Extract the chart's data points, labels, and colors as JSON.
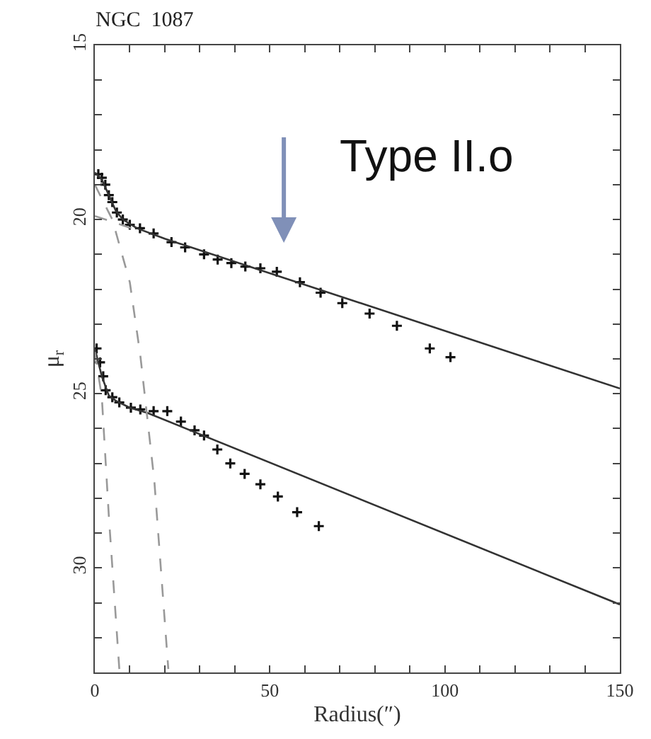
{
  "chart_data": {
    "type": "scatter",
    "title": "NGC  1087",
    "xlabel": "Radius(″)",
    "ylabel": "μ$_{r}$",
    "xlim": [
      0,
      150
    ],
    "ylim": [
      33,
      15
    ],
    "xticks": [
      0,
      {
        "value": 10,
        "label": null
      },
      {
        "value": 20,
        "label": null
      },
      {
        "value": 30,
        "label": null
      },
      {
        "value": 40,
        "label": null
      },
      50,
      {
        "value": 60,
        "label": null
      },
      {
        "value": 70,
        "label": null
      },
      {
        "value": 80,
        "label": null
      },
      {
        "value": 90,
        "label": null
      },
      100,
      {
        "value": 110,
        "label": null
      },
      {
        "value": 120,
        "label": null
      },
      {
        "value": 130,
        "label": null
      },
      {
        "value": 140,
        "label": null
      },
      150
    ],
    "yticks": [
      15,
      {
        "value": 16,
        "label": null
      },
      {
        "value": 17,
        "label": null
      },
      {
        "value": 18,
        "label": null
      },
      {
        "value": 19,
        "label": null
      },
      20,
      {
        "value": 21,
        "label": null
      },
      {
        "value": 22,
        "label": null
      },
      {
        "value": 23,
        "label": null
      },
      {
        "value": 24,
        "label": null
      },
      25,
      {
        "value": 26,
        "label": null
      },
      {
        "value": 27,
        "label": null
      },
      {
        "value": 28,
        "label": null
      },
      {
        "value": 29,
        "label": null
      },
      30,
      {
        "value": 31,
        "label": null
      },
      {
        "value": 32,
        "label": null
      },
      {
        "value": 33,
        "label": null
      }
    ],
    "annotations": [
      "Type II.o"
    ],
    "series": [
      {
        "marker": "cross",
        "color": "#111111",
        "x": [
          1,
          2,
          3,
          4,
          5,
          6.3,
          8,
          10,
          12.9,
          16.8,
          21.9,
          25.8,
          31.2,
          35.1,
          39,
          43,
          47.3,
          52,
          58.6,
          64.5,
          70.7,
          78.5,
          86.3,
          95.7,
          101.6
        ],
        "values": [
          18.7,
          18.8,
          19.0,
          19.3,
          19.5,
          19.8,
          20.0,
          20.15,
          20.25,
          20.4,
          20.65,
          20.8,
          21.0,
          21.15,
          21.25,
          21.35,
          21.4,
          21.5,
          21.8,
          22.1,
          22.4,
          22.7,
          23.05,
          23.7,
          23.95
        ]
      },
      {
        "marker": "cross",
        "color": "#111111",
        "x": [
          0.5,
          1.5,
          2.4,
          3.1,
          5,
          7,
          10.3,
          13,
          16.8,
          20.7,
          24.6,
          28.5,
          31.2,
          35,
          38.7,
          42.8,
          47.3,
          52.3,
          57.8,
          64
        ],
        "values": [
          23.7,
          24.1,
          24.5,
          24.9,
          25.1,
          25.25,
          25.4,
          25.45,
          25.5,
          25.5,
          25.8,
          26.05,
          26.2,
          26.6,
          27.0,
          27.3,
          27.6,
          27.95,
          28.4,
          28.8
        ]
      },
      {
        "type": "line",
        "line_style": "solid",
        "color": "#333333",
        "x": [
          0,
          2,
          4,
          6,
          8,
          12,
          20,
          150
        ],
        "values": [
          18.65,
          18.85,
          19.3,
          19.75,
          20.0,
          20.25,
          20.55,
          24.85
        ]
      },
      {
        "type": "line",
        "line_style": "solid",
        "color": "#333333",
        "x": [
          0,
          2,
          4,
          6,
          10,
          15,
          150
        ],
        "values": [
          23.7,
          24.5,
          25.05,
          25.2,
          25.4,
          25.55,
          31.05
        ]
      },
      {
        "type": "line",
        "line_style": "dashed",
        "color": "#999999",
        "x": [
          0,
          5,
          10,
          13,
          17,
          21
        ],
        "values": [
          19.0,
          20.0,
          21.8,
          23.9,
          27.5,
          32.9
        ]
      },
      {
        "type": "line",
        "line_style": "dashed",
        "color": "#999999",
        "x": [
          0,
          12
        ],
        "values": [
          19.9,
          20.3
        ]
      },
      {
        "type": "line",
        "line_style": "dashed",
        "color": "#999999",
        "x": [
          0,
          2,
          4,
          7
        ],
        "values": [
          23.8,
          25.1,
          28.5,
          32.9
        ]
      }
    ]
  }
}
